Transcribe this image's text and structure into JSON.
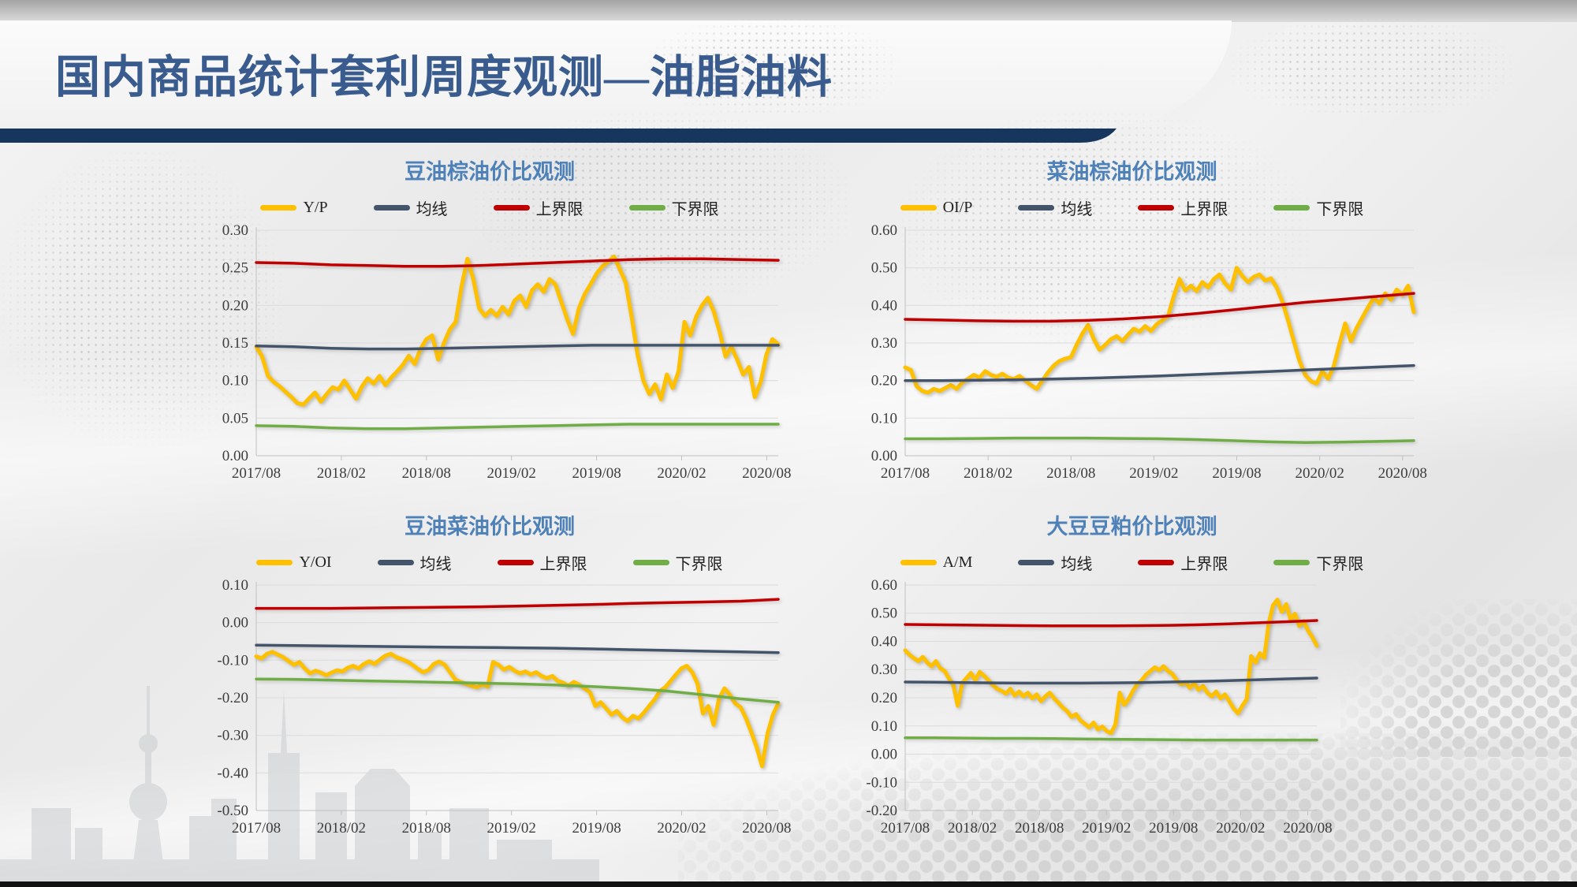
{
  "slide": {
    "title": "国内商品统计套利周度观测—油脂油料"
  },
  "colors": {
    "main": "#FFC000",
    "mean": "#44546A",
    "upper": "#C00000",
    "lower": "#70AD47",
    "title_text": "#3A5B8E",
    "chart_title_text": "#4E81B8",
    "accent_bar": "#17365D",
    "tick_text": "#3D3D3D",
    "grid": "#DBDBDB",
    "axis": "#C0C0C0"
  },
  "chart_data": [
    {
      "type": "line",
      "title": "豆油棕油价比观测",
      "legend_position": "top",
      "grid": true,
      "ylim": [
        0,
        0.3
      ],
      "yticks": [
        0.3,
        0.25,
        0.2,
        0.15,
        0.1,
        0.05,
        0.0
      ],
      "ytick_labels": [
        "0.30",
        "0.25",
        "0.20",
        "0.15",
        "0.10",
        "0.05",
        "0.00"
      ],
      "xticks": [
        "2017/08",
        "2018/02",
        "2018/08",
        "2019/02",
        "2019/08",
        "2020/02",
        "2020/08"
      ],
      "series": [
        {
          "name": "Y/P",
          "role": "main",
          "values": [
            0.145,
            0.132,
            0.106,
            0.098,
            0.092,
            0.085,
            0.078,
            0.07,
            0.068,
            0.076,
            0.084,
            0.072,
            0.082,
            0.091,
            0.088,
            0.1,
            0.088,
            0.076,
            0.092,
            0.103,
            0.096,
            0.106,
            0.094,
            0.104,
            0.112,
            0.121,
            0.133,
            0.122,
            0.142,
            0.155,
            0.16,
            0.128,
            0.15,
            0.168,
            0.178,
            0.225,
            0.262,
            0.235,
            0.196,
            0.186,
            0.194,
            0.186,
            0.198,
            0.188,
            0.206,
            0.213,
            0.198,
            0.22,
            0.228,
            0.218,
            0.235,
            0.228,
            0.205,
            0.182,
            0.162,
            0.196,
            0.215,
            0.228,
            0.242,
            0.252,
            0.258,
            0.265,
            0.248,
            0.23,
            0.185,
            0.135,
            0.1,
            0.082,
            0.095,
            0.075,
            0.108,
            0.09,
            0.112,
            0.178,
            0.16,
            0.185,
            0.2,
            0.21,
            0.192,
            0.165,
            0.132,
            0.145,
            0.128,
            0.108,
            0.118,
            0.078,
            0.098,
            0.135,
            0.155,
            0.148
          ]
        },
        {
          "name": "均线",
          "role": "mean",
          "values": [
            0.146,
            0.145,
            0.143,
            0.142,
            0.142,
            0.143,
            0.144,
            0.145,
            0.146,
            0.147,
            0.147,
            0.147,
            0.147,
            0.147,
            0.147
          ]
        },
        {
          "name": "上界限",
          "role": "upper",
          "values": [
            0.257,
            0.256,
            0.254,
            0.253,
            0.252,
            0.252,
            0.253,
            0.255,
            0.257,
            0.259,
            0.261,
            0.262,
            0.262,
            0.261,
            0.26
          ]
        },
        {
          "name": "下界限",
          "role": "lower",
          "values": [
            0.04,
            0.039,
            0.037,
            0.036,
            0.036,
            0.037,
            0.038,
            0.039,
            0.04,
            0.041,
            0.042,
            0.042,
            0.042,
            0.042,
            0.042
          ]
        }
      ]
    },
    {
      "type": "line",
      "title": "菜油棕油价比观测",
      "legend_position": "top",
      "grid": true,
      "ylim": [
        0,
        0.6
      ],
      "yticks": [
        0.6,
        0.5,
        0.4,
        0.3,
        0.2,
        0.1,
        0.0
      ],
      "ytick_labels": [
        "0.60",
        "0.50",
        "0.40",
        "0.30",
        "0.20",
        "0.10",
        "0.00"
      ],
      "xticks": [
        "2017/08",
        "2018/02",
        "2018/08",
        "2019/02",
        "2019/08",
        "2020/02",
        "2020/08"
      ],
      "series": [
        {
          "name": "OI/P",
          "role": "main",
          "values": [
            0.235,
            0.228,
            0.185,
            0.172,
            0.168,
            0.178,
            0.172,
            0.18,
            0.188,
            0.178,
            0.195,
            0.205,
            0.215,
            0.208,
            0.225,
            0.215,
            0.21,
            0.218,
            0.208,
            0.204,
            0.212,
            0.2,
            0.188,
            0.178,
            0.2,
            0.222,
            0.24,
            0.252,
            0.258,
            0.262,
            0.295,
            0.325,
            0.348,
            0.31,
            0.282,
            0.295,
            0.31,
            0.318,
            0.305,
            0.322,
            0.338,
            0.33,
            0.345,
            0.332,
            0.35,
            0.36,
            0.372,
            0.425,
            0.47,
            0.44,
            0.452,
            0.438,
            0.462,
            0.448,
            0.47,
            0.482,
            0.458,
            0.442,
            0.5,
            0.478,
            0.462,
            0.476,
            0.482,
            0.466,
            0.472,
            0.448,
            0.41,
            0.36,
            0.305,
            0.252,
            0.215,
            0.198,
            0.192,
            0.225,
            0.205,
            0.238,
            0.298,
            0.352,
            0.305,
            0.34,
            0.368,
            0.395,
            0.42,
            0.405,
            0.432,
            0.415,
            0.442,
            0.428,
            0.452,
            0.382
          ]
        },
        {
          "name": "均线",
          "role": "mean",
          "values": [
            0.2,
            0.2,
            0.201,
            0.202,
            0.204,
            0.206,
            0.209,
            0.212,
            0.216,
            0.22,
            0.224,
            0.228,
            0.232,
            0.236,
            0.24
          ]
        },
        {
          "name": "上界限",
          "role": "upper",
          "values": [
            0.363,
            0.361,
            0.359,
            0.358,
            0.358,
            0.36,
            0.364,
            0.37,
            0.378,
            0.388,
            0.398,
            0.408,
            0.416,
            0.424,
            0.432
          ]
        },
        {
          "name": "下界限",
          "role": "lower",
          "values": [
            0.045,
            0.045,
            0.046,
            0.047,
            0.047,
            0.047,
            0.046,
            0.045,
            0.043,
            0.04,
            0.037,
            0.035,
            0.036,
            0.038,
            0.04
          ]
        }
      ]
    },
    {
      "type": "line",
      "title": "豆油菜油价比观测",
      "legend_position": "top",
      "grid": true,
      "ylim": [
        -0.5,
        0.1
      ],
      "yticks": [
        0.1,
        0.0,
        -0.1,
        -0.2,
        -0.3,
        -0.4,
        -0.5
      ],
      "ytick_labels": [
        "0.10",
        "0.00",
        "-0.10",
        "-0.20",
        "-0.30",
        "-0.40",
        "-0.50"
      ],
      "xticks": [
        "2017/08",
        "2018/02",
        "2018/08",
        "2019/02",
        "2019/08",
        "2020/02",
        "2020/08"
      ],
      "series": [
        {
          "name": "Y/OI",
          "role": "main",
          "values": [
            -0.09,
            -0.095,
            -0.083,
            -0.078,
            -0.085,
            -0.092,
            -0.102,
            -0.112,
            -0.105,
            -0.122,
            -0.135,
            -0.128,
            -0.133,
            -0.14,
            -0.133,
            -0.127,
            -0.13,
            -0.12,
            -0.115,
            -0.122,
            -0.11,
            -0.103,
            -0.11,
            -0.098,
            -0.088,
            -0.083,
            -0.092,
            -0.097,
            -0.103,
            -0.112,
            -0.123,
            -0.132,
            -0.126,
            -0.11,
            -0.104,
            -0.112,
            -0.132,
            -0.152,
            -0.158,
            -0.163,
            -0.168,
            -0.172,
            -0.165,
            -0.17,
            -0.105,
            -0.112,
            -0.125,
            -0.118,
            -0.128,
            -0.135,
            -0.13,
            -0.138,
            -0.132,
            -0.142,
            -0.148,
            -0.142,
            -0.155,
            -0.16,
            -0.168,
            -0.158,
            -0.165,
            -0.175,
            -0.185,
            -0.222,
            -0.212,
            -0.228,
            -0.245,
            -0.235,
            -0.252,
            -0.262,
            -0.248,
            -0.255,
            -0.24,
            -0.222,
            -0.205,
            -0.182,
            -0.172,
            -0.155,
            -0.138,
            -0.122,
            -0.115,
            -0.132,
            -0.162,
            -0.242,
            -0.222,
            -0.272,
            -0.202,
            -0.175,
            -0.192,
            -0.215,
            -0.225,
            -0.255,
            -0.292,
            -0.332,
            -0.382,
            -0.295,
            -0.245,
            -0.215
          ]
        },
        {
          "name": "均线",
          "role": "mean",
          "values": [
            -0.06,
            -0.061,
            -0.062,
            -0.063,
            -0.064,
            -0.065,
            -0.066,
            -0.067,
            -0.068,
            -0.07,
            -0.072,
            -0.074,
            -0.076,
            -0.078,
            -0.08
          ]
        },
        {
          "name": "上界限",
          "role": "upper",
          "values": [
            0.038,
            0.038,
            0.038,
            0.039,
            0.04,
            0.041,
            0.042,
            0.044,
            0.046,
            0.048,
            0.051,
            0.053,
            0.055,
            0.057,
            0.062
          ]
        },
        {
          "name": "下界限",
          "role": "lower",
          "values": [
            -0.15,
            -0.151,
            -0.153,
            -0.155,
            -0.157,
            -0.159,
            -0.161,
            -0.163,
            -0.166,
            -0.17,
            -0.175,
            -0.182,
            -0.192,
            -0.203,
            -0.212
          ]
        }
      ]
    },
    {
      "type": "line",
      "title": "大豆豆粕价比观测",
      "legend_position": "top",
      "grid": true,
      "ylim": [
        -0.2,
        0.6
      ],
      "yticks": [
        0.6,
        0.5,
        0.4,
        0.3,
        0.2,
        0.1,
        0.0,
        -0.1,
        -0.2
      ],
      "ytick_labels": [
        "0.60",
        "0.50",
        "0.40",
        "0.30",
        "0.20",
        "0.10",
        "0.00",
        "-0.10",
        "-0.20"
      ],
      "xticks": [
        "2017/08",
        "2018/02",
        "2018/08",
        "2019/02",
        "2019/08",
        "2020/02",
        "2020/08"
      ],
      "series": [
        {
          "name": "A/M",
          "role": "main",
          "values": [
            0.368,
            0.352,
            0.34,
            0.33,
            0.345,
            0.326,
            0.312,
            0.33,
            0.305,
            0.295,
            0.268,
            0.245,
            0.172,
            0.252,
            0.27,
            0.288,
            0.262,
            0.292,
            0.278,
            0.262,
            0.245,
            0.232,
            0.225,
            0.215,
            0.232,
            0.208,
            0.222,
            0.205,
            0.218,
            0.198,
            0.212,
            0.188,
            0.205,
            0.218,
            0.198,
            0.182,
            0.165,
            0.152,
            0.132,
            0.142,
            0.12,
            0.108,
            0.095,
            0.112,
            0.088,
            0.098,
            0.082,
            0.075,
            0.105,
            0.218,
            0.175,
            0.195,
            0.225,
            0.248,
            0.262,
            0.282,
            0.295,
            0.308,
            0.298,
            0.312,
            0.295,
            0.285,
            0.262,
            0.248,
            0.255,
            0.235,
            0.252,
            0.228,
            0.242,
            0.218,
            0.205,
            0.222,
            0.198,
            0.212,
            0.188,
            0.162,
            0.145,
            0.172,
            0.195,
            0.348,
            0.325,
            0.358,
            0.342,
            0.462,
            0.528,
            0.548,
            0.505,
            0.532,
            0.478,
            0.498,
            0.455,
            0.472,
            0.438,
            0.415,
            0.385
          ]
        },
        {
          "name": "均线",
          "role": "mean",
          "values": [
            0.256,
            0.255,
            0.254,
            0.253,
            0.252,
            0.252,
            0.252,
            0.253,
            0.254,
            0.256,
            0.258,
            0.261,
            0.264,
            0.267,
            0.27
          ]
        },
        {
          "name": "上界限",
          "role": "upper",
          "values": [
            0.46,
            0.459,
            0.458,
            0.457,
            0.456,
            0.455,
            0.455,
            0.455,
            0.456,
            0.457,
            0.459,
            0.462,
            0.466,
            0.47,
            0.474
          ]
        },
        {
          "name": "下界限",
          "role": "lower",
          "values": [
            0.058,
            0.058,
            0.057,
            0.056,
            0.056,
            0.055,
            0.054,
            0.053,
            0.052,
            0.051,
            0.05,
            0.05,
            0.05,
            0.05,
            0.05
          ]
        }
      ]
    }
  ]
}
